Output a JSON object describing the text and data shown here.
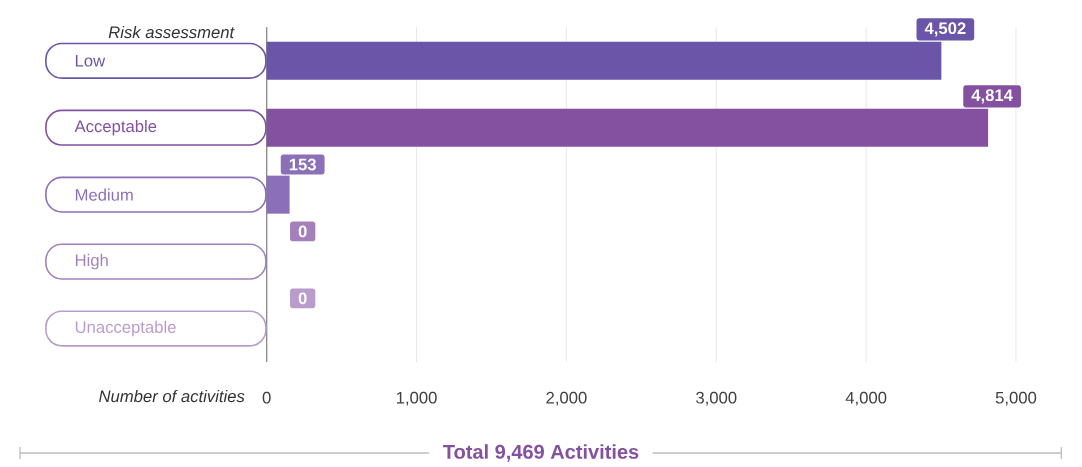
{
  "chart_data": {
    "type": "bar",
    "orientation": "horizontal",
    "ylabel": "Risk assessment",
    "xlabel": "Number of activities",
    "categories": [
      "Low",
      "Acceptable",
      "Medium",
      "High",
      "Unacceptable"
    ],
    "values": [
      4502,
      4814,
      153,
      0,
      0
    ],
    "value_labels": [
      "4,502",
      "4,814",
      "153",
      "0",
      "0"
    ],
    "colors": [
      "#6a55a8",
      "#8450a0",
      "#8b6fb8",
      "#a480bb",
      "#b99ccb"
    ],
    "xlim": [
      0,
      5000
    ],
    "xticks": [
      0,
      {
        "value": 1000,
        "label": "1,000"
      },
      {
        "value": 2000,
        "label": "2,000"
      },
      {
        "value": 3000,
        "label": "3,000"
      },
      {
        "value": 4000,
        "label": "4,000"
      },
      {
        "value": 5000,
        "label": "5,000"
      }
    ],
    "grid": "x",
    "annotations": [
      "Total 9,469 Activities"
    ]
  }
}
